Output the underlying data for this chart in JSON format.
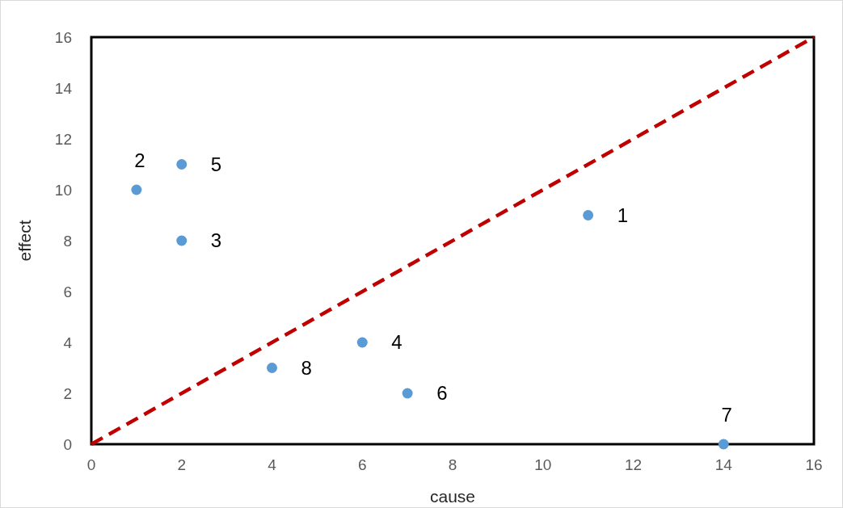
{
  "chart_data": {
    "type": "scatter",
    "xlabel": "cause",
    "ylabel": "effect",
    "xlim": [
      0,
      16
    ],
    "ylim": [
      0,
      16
    ],
    "xticks": [
      0,
      2,
      4,
      6,
      8,
      10,
      12,
      14,
      16
    ],
    "yticks": [
      0,
      2,
      4,
      6,
      8,
      10,
      12,
      14,
      16
    ],
    "grid": false,
    "series": [
      {
        "color": "#5b9bd5",
        "marker": "circle",
        "x": [
          11,
          1,
          2,
          6,
          2,
          7,
          14,
          4
        ],
        "values": [
          9,
          10,
          8,
          4,
          11,
          2,
          0,
          3
        ]
      },
      {
        "type": "line",
        "marker": "none",
        "color": "#c00000",
        "line_style": "dashed",
        "x": [
          0,
          16
        ],
        "values": [
          0,
          16
        ]
      }
    ],
    "annotations": [
      {
        "text": "1",
        "x": 11,
        "y": 9
      },
      {
        "text": "2",
        "x": 1,
        "y": 10
      },
      {
        "text": "3",
        "x": 2,
        "y": 8
      },
      {
        "text": "4",
        "x": 6,
        "y": 4
      },
      {
        "text": "5",
        "x": 2,
        "y": 11
      },
      {
        "text": "6",
        "x": 7,
        "y": 2
      },
      {
        "text": "7",
        "x": 14,
        "y": 0
      },
      {
        "text": "8",
        "x": 4,
        "y": 3
      }
    ]
  }
}
